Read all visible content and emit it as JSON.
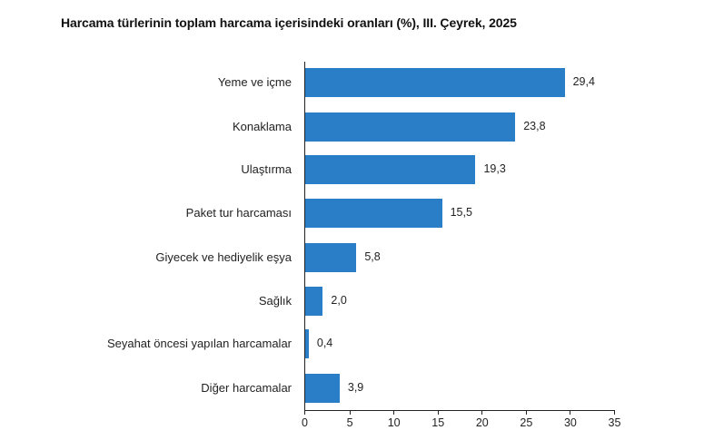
{
  "chart_data": {
    "type": "bar",
    "orientation": "horizontal",
    "title": "Harcama türlerinin toplam harcama içerisindeki oranları (%), III. Çeyrek, 2025",
    "xlabel": "",
    "ylabel": "",
    "categories": [
      "Yeme ve içme",
      "Konaklama",
      "Ulaştırma",
      "Paket tur harcaması",
      "Giyecek ve hediyelik eşya",
      "Sağlık",
      "Seyahat öncesi yapılan harcamalar",
      "Diğer harcamalar"
    ],
    "values": [
      29.4,
      23.8,
      19.3,
      15.5,
      5.8,
      2.0,
      0.4,
      3.9
    ],
    "value_labels": [
      "29,4",
      "23,8",
      "19,3",
      "15,5",
      "5,8",
      "2,0",
      "0,4",
      "3,9"
    ],
    "xlim": [
      0,
      35
    ],
    "x_ticks": [
      "0",
      "5",
      "10",
      "15",
      "20",
      "25",
      "30",
      "35"
    ],
    "grid": false,
    "legend": null,
    "bar_color": "#2a7ec8"
  }
}
